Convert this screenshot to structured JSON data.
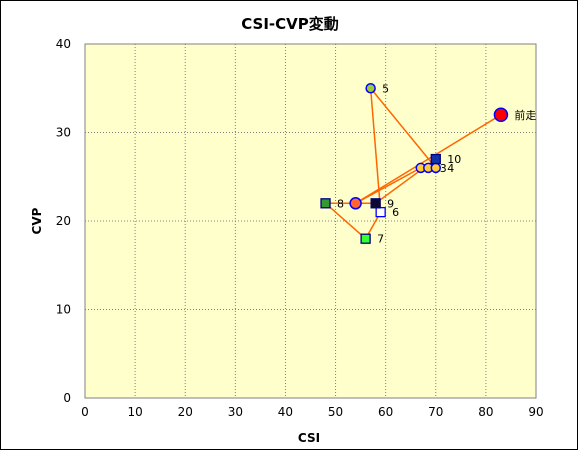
{
  "chart_data": {
    "type": "scatter",
    "title": "CSI-CVP変動",
    "xlabel": "CSI",
    "ylabel": "CVP",
    "xlim": [
      0,
      90
    ],
    "ylim": [
      0,
      40
    ],
    "xticks": [
      0,
      10,
      20,
      30,
      40,
      50,
      60,
      70,
      80,
      90
    ],
    "yticks": [
      0,
      10,
      20,
      30,
      40
    ],
    "grid": true,
    "legend": "none",
    "colors": {
      "plot_bg": "#ffffcc",
      "line": "#ff6600",
      "grid": "#808080"
    },
    "points": [
      {
        "label": "前走",
        "x": 83,
        "y": 32,
        "marker": "circle",
        "fill": "#ff0000",
        "stroke": "#0000ff"
      },
      {
        "label": "",
        "x": 54,
        "y": 22,
        "marker": "circle",
        "fill": "#ff6633",
        "stroke": "#0000ff"
      },
      {
        "label": "",
        "x": 67,
        "y": 26,
        "marker": "circle",
        "fill": "#ffcc33",
        "stroke": "#0000ff"
      },
      {
        "label": "3",
        "x": 68.5,
        "y": 26,
        "marker": "circle",
        "fill": "#ffcc33",
        "stroke": "#0000ff"
      },
      {
        "label": "4",
        "x": 70,
        "y": 26,
        "marker": "circle",
        "fill": "#ffcc33",
        "stroke": "#0000ff"
      },
      {
        "label": "5",
        "x": 57,
        "y": 35,
        "marker": "circle",
        "fill": "#99cc33",
        "stroke": "#0000ff"
      },
      {
        "label": "6",
        "x": 59,
        "y": 21,
        "marker": "square",
        "fill": "#ffffff",
        "stroke": "#0000ff"
      },
      {
        "label": "7",
        "x": 56,
        "y": 18,
        "marker": "square",
        "fill": "#33ff33",
        "stroke": "#000080"
      },
      {
        "label": "8",
        "x": 48,
        "y": 22,
        "marker": "square",
        "fill": "#339933",
        "stroke": "#000080"
      },
      {
        "label": "9",
        "x": 58,
        "y": 22,
        "marker": "square",
        "fill": "#0a0a33",
        "stroke": "#000080"
      },
      {
        "label": "10",
        "x": 70,
        "y": 27,
        "marker": "square",
        "fill": "#1133aa",
        "stroke": "#000080"
      }
    ],
    "path_order": [
      0,
      1,
      2,
      3,
      4,
      5,
      6,
      7,
      8,
      9,
      10
    ]
  }
}
